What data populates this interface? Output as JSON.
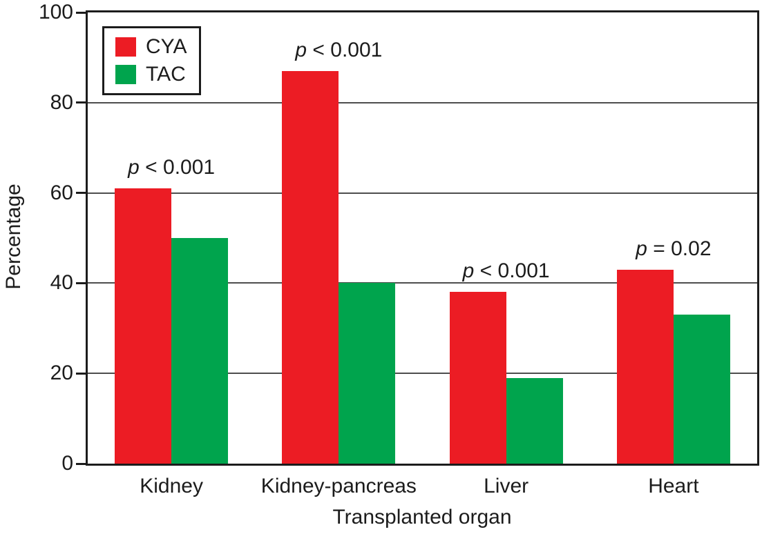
{
  "chart_data": {
    "type": "bar",
    "title": "",
    "categories": [
      "Kidney",
      "Kidney-pancreas",
      "Liver",
      "Heart"
    ],
    "series": [
      {
        "name": "CYA",
        "color": "#EC1C24",
        "values": [
          61,
          87,
          38,
          43
        ]
      },
      {
        "name": "TAC",
        "color": "#00A44D",
        "values": [
          50,
          40,
          19,
          33
        ]
      }
    ],
    "annotations": [
      "p < 0.001",
      "p < 0.001",
      "p < 0.001",
      "p = 0.02"
    ],
    "xlabel": "Transplanted organ",
    "ylabel": "Percentage",
    "ylim": [
      0,
      100
    ],
    "yticks": [
      0,
      20,
      40,
      60,
      80,
      100
    ],
    "grid": true,
    "legend_position": "top-left",
    "axis_color": "#1c1c1c",
    "gridline_color": "#4d4d4d"
  }
}
